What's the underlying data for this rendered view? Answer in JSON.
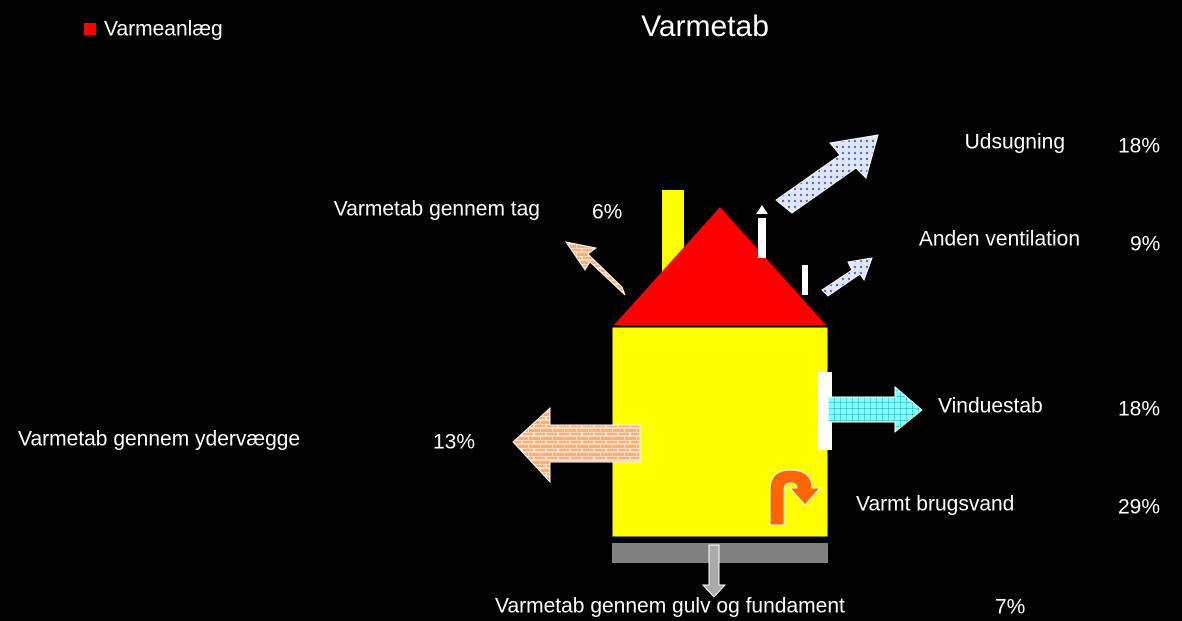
{
  "legend": {
    "label": "Varmeanlæg"
  },
  "title": "Varmetab",
  "items": [
    {
      "label": "Udsugning",
      "share": "18%"
    },
    {
      "label": "Varmetab gennem tag",
      "share": "6%"
    },
    {
      "label": "Anden ventilation",
      "share": "9%"
    },
    {
      "label": "Vinduestab",
      "share": "18%"
    },
    {
      "label": "Varmetab gennem ydervægge",
      "share": "13%"
    },
    {
      "label": "Varmt brugsvand",
      "share": "29%"
    },
    {
      "label": "Varmetab gennem gulv og fundament",
      "share": "7%"
    }
  ]
}
